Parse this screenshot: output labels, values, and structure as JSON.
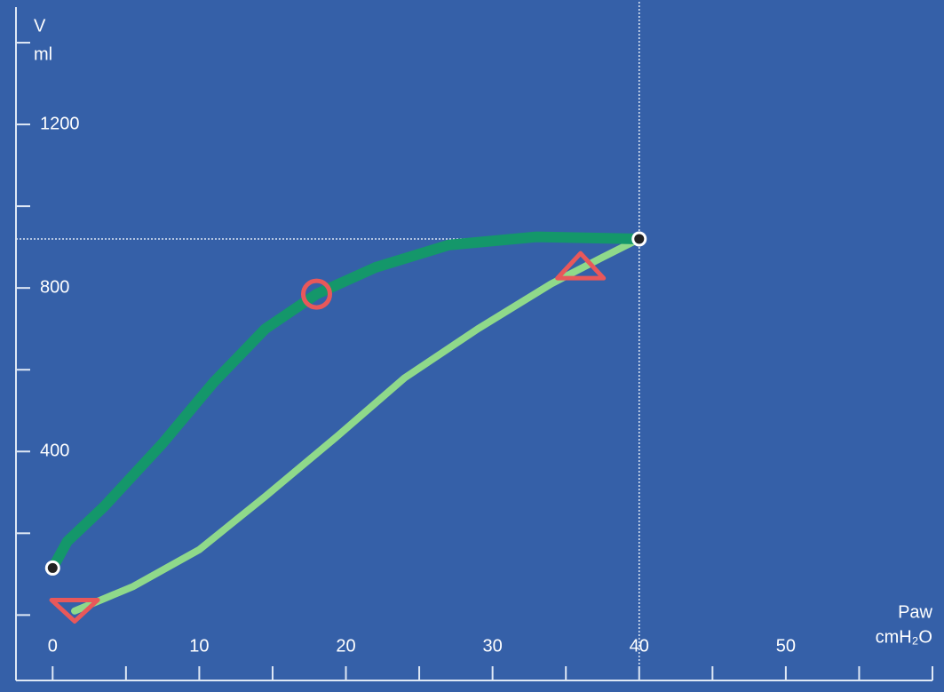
{
  "chart_data": {
    "type": "line",
    "y_label": [
      "V",
      "ml"
    ],
    "x_label": [
      "Paw",
      "cmH₂O"
    ],
    "xlim": [
      -2.5,
      60
    ],
    "ylim": [
      -160,
      1500
    ],
    "xticks": [
      0,
      10,
      20,
      30,
      40,
      50
    ],
    "xminor": [
      0,
      5,
      10,
      15,
      20,
      25,
      30,
      35,
      40,
      45,
      50,
      55,
      60
    ],
    "yticks": [
      400,
      800,
      1200
    ],
    "yminor": [
      0,
      200,
      400,
      600,
      800,
      1000,
      1200,
      1400
    ],
    "background": "#3560a8",
    "axis_color": "#dfe8f5",
    "series": [
      {
        "color": "#8fd98a",
        "width": 8,
        "x": [
          1.5,
          5.5,
          10,
          14.5,
          19.5,
          24,
          29,
          34,
          37.5,
          40
        ],
        "values": [
          10,
          70,
          160,
          290,
          440,
          580,
          700,
          810,
          875,
          920
        ]
      },
      {
        "color": "#14976a",
        "width": 12,
        "x": [
          40,
          33,
          27,
          22,
          18,
          14.5,
          11,
          7.5,
          3.5,
          1,
          0
        ],
        "values": [
          920,
          925,
          905,
          850,
          785,
          700,
          570,
          420,
          265,
          180,
          115
        ]
      }
    ],
    "markers": [
      {
        "shape": "circle",
        "color": "#e8585a",
        "x": 18,
        "y": 785
      },
      {
        "shape": "triangle-up",
        "color": "#e8585a",
        "x": 36,
        "y": 850
      },
      {
        "shape": "triangle-down",
        "color": "#e8585a",
        "x": 1.5,
        "y": 15
      },
      {
        "shape": "point",
        "color": "#ffffff",
        "x": 40,
        "y": 920
      },
      {
        "shape": "point",
        "color": "#ffffff",
        "x": 0,
        "y": 115
      }
    ],
    "cursor": {
      "x": 40,
      "y": 920
    }
  }
}
